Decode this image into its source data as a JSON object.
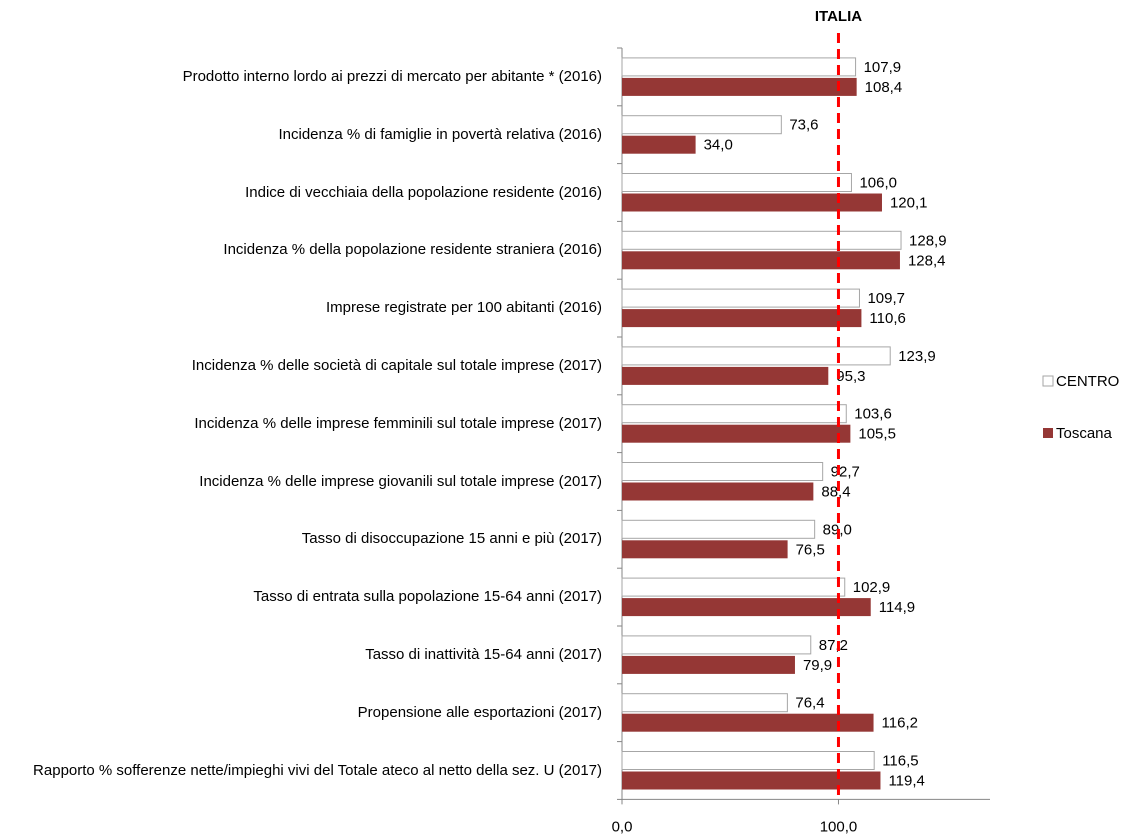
{
  "chart_data": {
    "type": "bar",
    "orientation": "horizontal",
    "categories": [
      "Prodotto interno lordo ai prezzi di mercato per abitante * (2016)",
      "Incidenza % di famiglie in povertà relativa (2016)",
      "Indice di vecchiaia della popolazione residente (2016)",
      "Incidenza % della popolazione residente straniera (2016)",
      "Imprese registrate per 100 abitanti (2016)",
      "Incidenza % delle società di capitale sul totale imprese (2017)",
      "Incidenza % delle imprese femminili sul totale imprese (2017)",
      "Incidenza % delle imprese giovanili sul totale imprese (2017)",
      "Tasso di disoccupazione 15 anni e più (2017)",
      "Tasso di entrata sulla popolazione 15-64 anni (2017)",
      "Tasso di inattività 15-64 anni (2017)",
      "Propensione alle esportazioni (2017)",
      "Rapporto % sofferenze nette/impieghi vivi del Totale ateco al netto della sez. U (2017)"
    ],
    "series": [
      {
        "name": "CENTRO",
        "color": "#ffffff",
        "stroke": "#a6a6a6",
        "values": [
          107.9,
          73.6,
          106.0,
          128.9,
          109.7,
          123.9,
          103.6,
          92.7,
          89.0,
          102.9,
          87.2,
          76.4,
          116.5
        ],
        "value_labels": [
          "107,9",
          "73,6",
          "106,0",
          "128,9",
          "109,7",
          "123,9",
          "103,6",
          "92,7",
          "89,0",
          "102,9",
          "87,2",
          "76,4",
          "116,5"
        ]
      },
      {
        "name": "Toscana",
        "color": "#953735",
        "values": [
          108.4,
          34.0,
          120.1,
          128.4,
          110.6,
          95.3,
          105.5,
          88.4,
          76.5,
          114.9,
          79.9,
          116.2,
          119.4
        ],
        "value_labels": [
          "108,4",
          "34,0",
          "120,1",
          "128,4",
          "110,6",
          "95,3",
          "105,5",
          "88,4",
          "76,5",
          "114,9",
          "79,9",
          "116,2",
          "119,4"
        ]
      }
    ],
    "xlim": [
      0,
      170
    ],
    "xticks": [
      {
        "value": 0,
        "label": "0,0"
      },
      {
        "value": 100,
        "label": "100,0"
      }
    ],
    "reference_line": {
      "label": "ITALIA",
      "value": 100,
      "color": "#ff0000"
    },
    "legend": "right"
  }
}
